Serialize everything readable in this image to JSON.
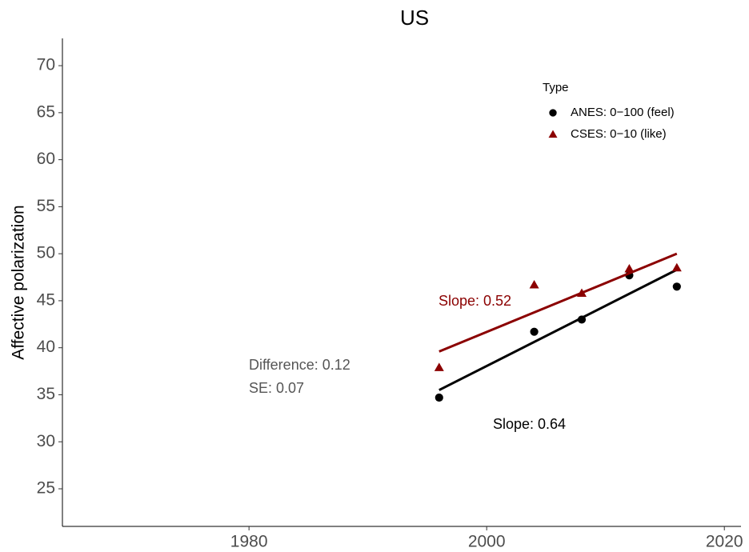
{
  "chart_data": {
    "type": "scatter",
    "title": "US",
    "y_label": "Affective polarization",
    "xlim": [
      1964.3,
      2021.4
    ],
    "xticks": [
      1980,
      2000,
      2020
    ],
    "ylim": [
      21,
      72.9
    ],
    "yticks": [
      25,
      30,
      35,
      40,
      45,
      50,
      55,
      60,
      65,
      70
    ],
    "legend_title": "Type",
    "legend_position": "top-right",
    "series": [
      {
        "name": "ANES: 0−100 (feel)",
        "color": "#000000",
        "marker": "circle",
        "x": [
          1996,
          2004,
          2008,
          2012,
          2016
        ],
        "values": [
          34.7,
          41.7,
          43.0,
          47.7,
          46.5
        ],
        "fit": {
          "x": [
            1996,
            2016
          ],
          "values": [
            35.5,
            48.3
          ]
        }
      },
      {
        "name": "CSES: 0−10 (like)",
        "color": "#8b0000",
        "marker": "triangle",
        "x": [
          1996,
          2004,
          2008,
          2012,
          2016
        ],
        "values": [
          37.9,
          46.7,
          45.8,
          48.4,
          48.5
        ],
        "fit": {
          "x": [
            1996,
            2016
          ],
          "values": [
            39.6,
            50.0
          ]
        }
      }
    ],
    "annotations": [
      "Slope: 0.64",
      "Slope: 0.52",
      "Difference: 0.12",
      "SE: 0.07"
    ]
  }
}
